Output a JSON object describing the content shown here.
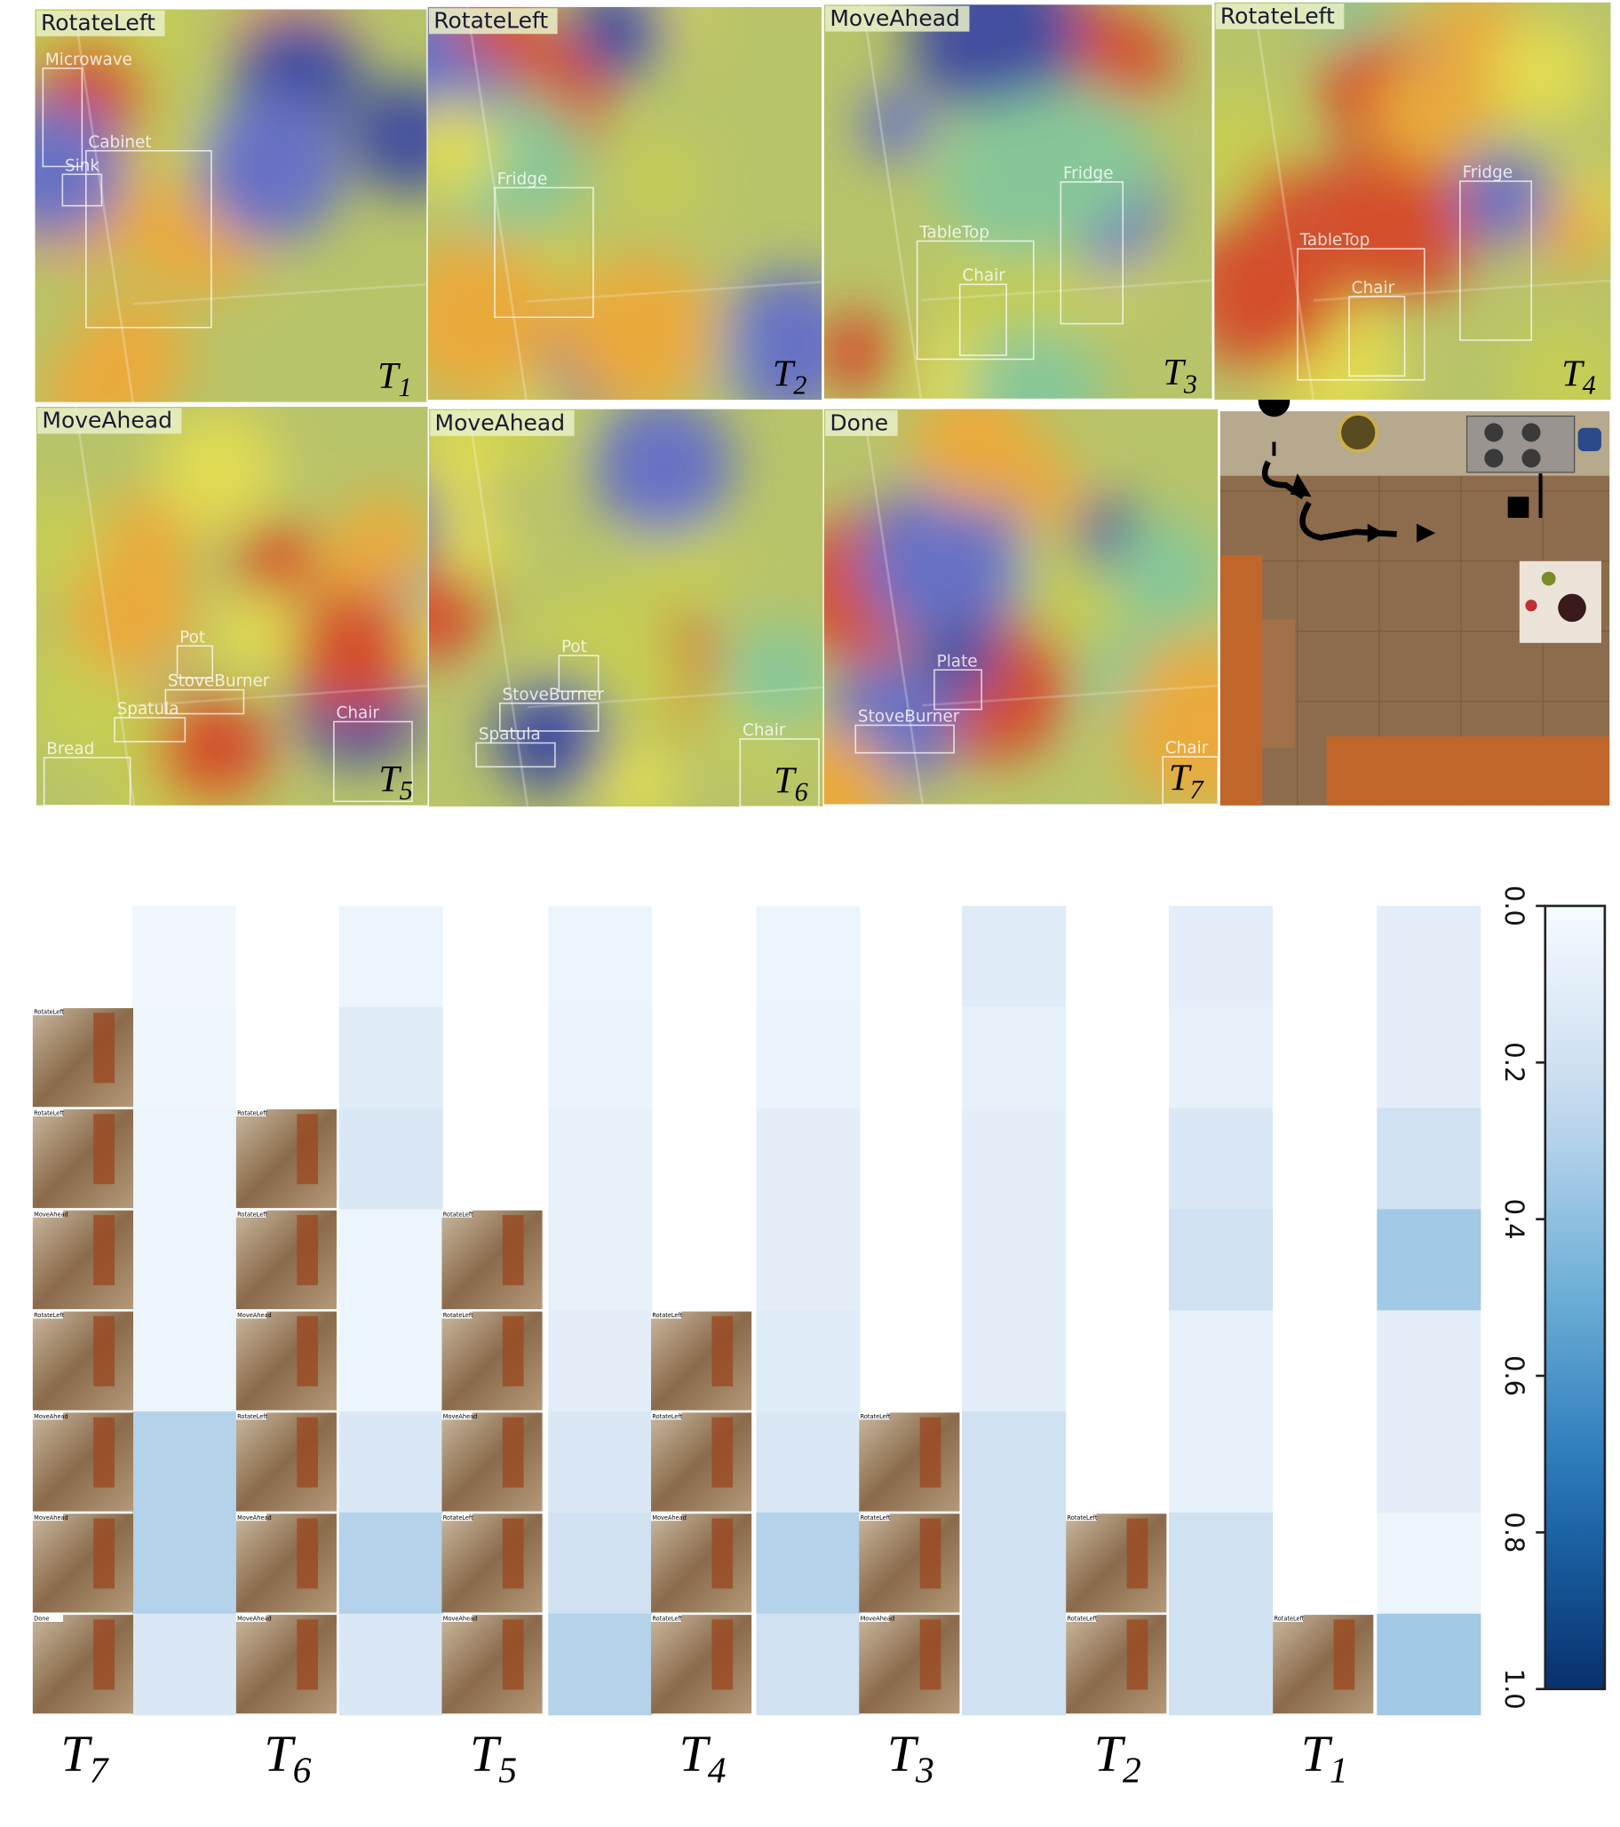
{
  "panels": [
    {
      "action": "RotateLeft",
      "step": {
        "base": "T",
        "sub": "1"
      },
      "objects": [
        "Microwave",
        "Cabinet",
        "Sink"
      ]
    },
    {
      "action": "RotateLeft",
      "step": {
        "base": "T",
        "sub": "2"
      },
      "objects": [
        "Fridge"
      ]
    },
    {
      "action": "MoveAhead",
      "step": {
        "base": "T",
        "sub": "3"
      },
      "objects": [
        "Fridge",
        "TableTop",
        "Chair"
      ]
    },
    {
      "action": "RotateLeft",
      "step": {
        "base": "T",
        "sub": "4"
      },
      "objects": [
        "Fridge",
        "TableTop",
        "Chair"
      ]
    },
    {
      "action": "MoveAhead",
      "step": {
        "base": "T",
        "sub": "5"
      },
      "objects": [
        "Pot",
        "StoveBurner",
        "Spatula",
        "Chair",
        "Bread"
      ]
    },
    {
      "action": "MoveAhead",
      "step": {
        "base": "T",
        "sub": "6"
      },
      "objects": [
        "Pot",
        "StoveBurner",
        "Spatula",
        "Chair"
      ]
    },
    {
      "action": "Done",
      "step": {
        "base": "T",
        "sub": "7"
      },
      "objects": [
        "Plate",
        "StoveBurner",
        "Chair"
      ]
    }
  ],
  "chart_data": {
    "type": "heatmap",
    "columns": [
      {
        "base": "T",
        "sub": "7"
      },
      {
        "base": "T",
        "sub": "6"
      },
      {
        "base": "T",
        "sub": "5"
      },
      {
        "base": "T",
        "sub": "4"
      },
      {
        "base": "T",
        "sub": "3"
      },
      {
        "base": "T",
        "sub": "2"
      },
      {
        "base": "T",
        "sub": "1"
      }
    ],
    "values": [
      [
        0.03,
        0.04,
        0.05,
        0.05,
        0.05,
        0.3,
        0.3,
        0.15
      ],
      [
        0.05,
        0.12,
        0.15,
        0.05,
        0.05,
        0.15,
        0.3,
        0.15
      ],
      [
        0.05,
        0.06,
        0.08,
        0.08,
        0.1,
        0.15,
        0.2,
        0.3
      ],
      [
        0.05,
        0.06,
        0.1,
        0.1,
        0.12,
        0.15,
        0.3,
        0.2
      ],
      [
        0.12,
        0.08,
        0.1,
        0.1,
        0.1,
        0.2,
        0.2,
        0.2
      ],
      [
        0.1,
        0.08,
        0.15,
        0.2,
        0.08,
        0.08,
        0.2,
        0.2
      ],
      [
        0.1,
        0.1,
        0.2,
        0.35,
        0.1,
        0.1,
        0.05,
        0.35
      ]
    ],
    "clim": [
      0,
      1
    ],
    "cticks": [
      {
        "value": 0,
        "label": "0.0"
      },
      0.2,
      0.4,
      0.6,
      0.8,
      {
        "value": 1,
        "label": "1.0"
      }
    ]
  }
}
